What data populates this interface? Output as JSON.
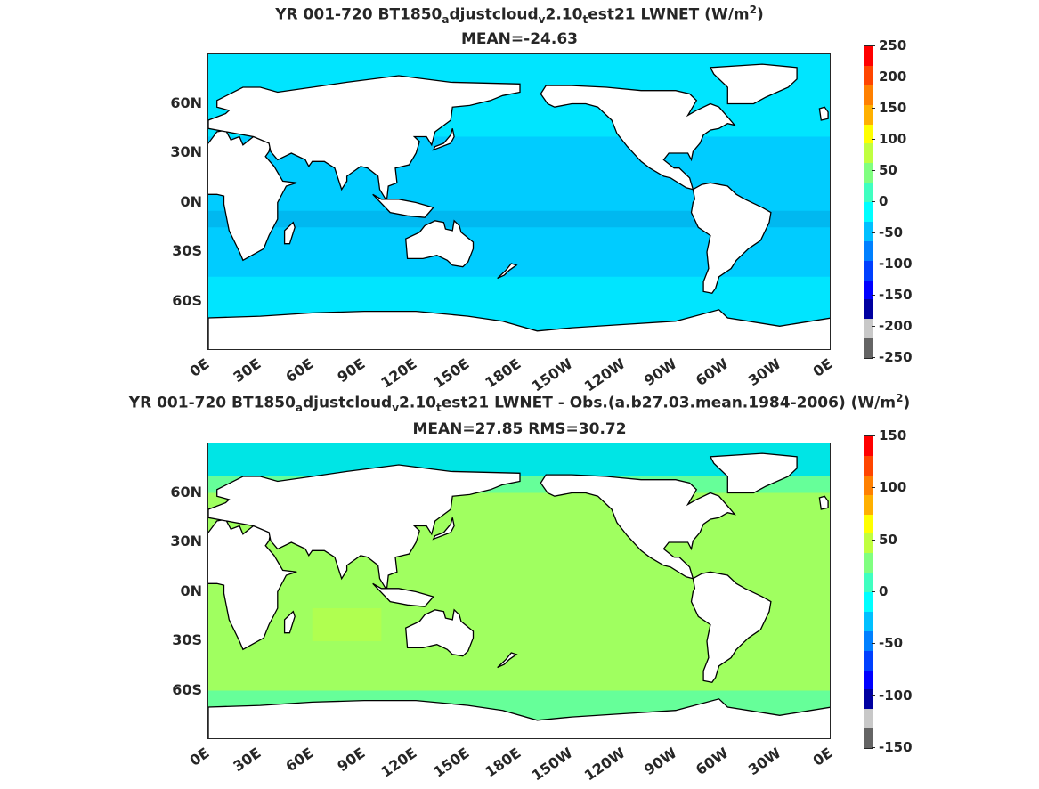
{
  "maps": [
    {
      "title_parts": [
        "YR 001-720 BT1850",
        "a",
        "djustcloud",
        "v",
        "2.10",
        "t",
        "est21  LWNET (W/m",
        "2",
        ")"
      ],
      "subtitle": "MEAN=-24.63",
      "colorbar_ticks": [
        "250",
        "200",
        "150",
        "100",
        "50",
        "0",
        "-50",
        "-100",
        "-150",
        "-200",
        "-250"
      ],
      "ocean_color": "#00e5ff",
      "band_color": "#00ccff"
    },
    {
      "title_parts": [
        "YR 001-720 BT1850",
        "a",
        "djustcloud",
        "v",
        "2.10",
        "t",
        "est21 LWNET - Obs.(a.b27.03.mean.1984-2006) (W/m",
        "2",
        ")"
      ],
      "subtitle": "MEAN=27.85 RMS=30.72",
      "colorbar_ticks": [
        "150",
        "100",
        "50",
        "0",
        "-50",
        "-100",
        "-150"
      ],
      "ocean_color": "#66ff99",
      "band_color": "#a0ff60"
    }
  ],
  "lat_labels": [
    "60N",
    "30N",
    "0N",
    "30S",
    "60S"
  ],
  "lon_labels": [
    "0E",
    "30E",
    "60E",
    "90E",
    "120E",
    "150E",
    "180E",
    "150W",
    "120W",
    "90W",
    "60W",
    "30W",
    "0E"
  ],
  "colormap": [
    "#ff0000",
    "#ff4500",
    "#ff8000",
    "#ffb000",
    "#ffff00",
    "#c0ff40",
    "#80ff80",
    "#40ffc0",
    "#00ffff",
    "#00c0ff",
    "#0080ff",
    "#0040ff",
    "#0000ff",
    "#0000a0",
    "#c8c8c8",
    "#646464"
  ]
}
